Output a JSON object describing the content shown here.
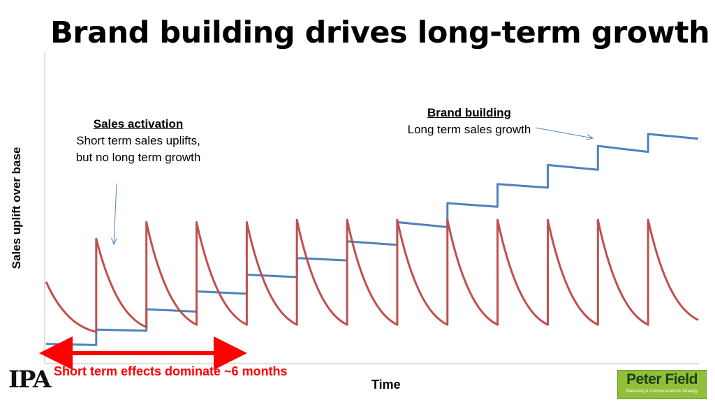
{
  "title": "Brand building drives long-term growth",
  "chart_data": {
    "type": "line",
    "xlabel": "Time",
    "ylabel": "Sales uplift over base",
    "x_ticks": "none",
    "y_ticks": "none",
    "series": [
      {
        "name": "Brand building",
        "color": "#4f81bd",
        "style": "staircase (step up at each activation, slight decline between)",
        "points": [
          [
            0,
            8
          ],
          [
            1,
            7.5
          ],
          [
            1,
            14
          ],
          [
            2,
            13.5
          ],
          [
            2,
            22.5
          ],
          [
            3,
            21.5
          ],
          [
            3,
            30
          ],
          [
            4,
            29
          ],
          [
            4,
            37
          ],
          [
            5,
            36
          ],
          [
            5,
            44
          ],
          [
            6,
            43
          ],
          [
            6,
            51
          ],
          [
            7,
            49.5
          ],
          [
            7,
            59
          ],
          [
            8,
            57
          ],
          [
            8,
            67
          ],
          [
            9,
            65.5
          ],
          [
            9,
            75
          ],
          [
            10,
            73.5
          ],
          [
            10,
            83
          ],
          [
            11,
            81
          ],
          [
            11,
            91
          ],
          [
            12,
            88.5
          ],
          [
            12,
            96
          ],
          [
            13,
            94
          ]
        ]
      },
      {
        "name": "Sales activation",
        "color": "#c0504d",
        "style": "sawtooth (sharp spike then exponential decay)",
        "points": [
          [
            0,
            34
          ],
          [
            1,
            13
          ],
          [
            1,
            52
          ],
          [
            2,
            15
          ],
          [
            2,
            59
          ],
          [
            3,
            16
          ],
          [
            3,
            59
          ],
          [
            4,
            16
          ],
          [
            4,
            59
          ],
          [
            5,
            16
          ],
          [
            5,
            60
          ],
          [
            6,
            16
          ],
          [
            6,
            60
          ],
          [
            7,
            16
          ],
          [
            7,
            60
          ],
          [
            8,
            16
          ],
          [
            8,
            60
          ],
          [
            9,
            16
          ],
          [
            9,
            60
          ],
          [
            10,
            16
          ],
          [
            10,
            60
          ],
          [
            11,
            16
          ],
          [
            11,
            60
          ],
          [
            12,
            16
          ],
          [
            12,
            60
          ],
          [
            13,
            18
          ]
        ]
      }
    ],
    "xlim": [
      0,
      13
    ],
    "ylim": [
      0,
      120
    ],
    "annotations": {
      "sales_activation": {
        "heading": "Sales activation",
        "line1": "Short term sales uplifts,",
        "line2": "but no long term growth"
      },
      "brand_building": {
        "heading": "Brand building",
        "line1": "Long term sales growth"
      },
      "short_term_effects": "Short term effects dominate ~6 months"
    }
  },
  "logos": {
    "left": "IPA",
    "right_name": "Peter Field",
    "right_sub": "Marketing & Communications Strategy"
  },
  "colors": {
    "brand_line": "#4f81bd",
    "activation_line": "#c0504d",
    "effects_arrow": "#ff0000",
    "annotation_arrow": "#4f81bd"
  }
}
